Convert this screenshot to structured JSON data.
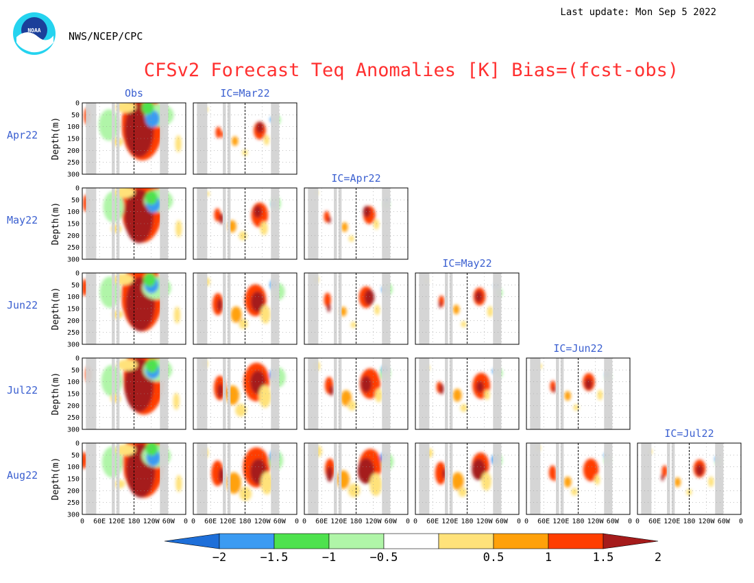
{
  "header": {
    "last_update": "Last update: Mon Sep 5 2022",
    "agency": "NWS/NCEP/CPC",
    "logo_text": "NOAA"
  },
  "chart_data": {
    "type": "heatmap",
    "title": "CFSv2 Forecast Teq Anomalies [K] Bias=(fcst-obs)",
    "ylabel": "Depth(m)",
    "y_ticks": [
      "0",
      "50",
      "100",
      "150",
      "200",
      "250",
      "300"
    ],
    "ylim": [
      300,
      0
    ],
    "x_ticks": [
      "0",
      "60E",
      "120E",
      "180",
      "120W",
      "60W",
      "0"
    ],
    "rows": [
      "Apr22",
      "May22",
      "Jun22",
      "Jul22",
      "Aug22"
    ],
    "obs_label": "Obs",
    "columns": [
      "IC=Mar22",
      "IC=Apr22",
      "IC=May22",
      "IC=Jun22",
      "IC=Jul22"
    ],
    "grid": true,
    "colorbar": {
      "ticks": [
        "−2",
        "−1.5",
        "−1",
        "−0.5",
        "0.5",
        "1",
        "1.5",
        "2"
      ],
      "bins": [
        {
          "range": "< -2",
          "color": "#1e6fd9"
        },
        {
          "range": "-2 to -1.5",
          "color": "#3b9bf2"
        },
        {
          "range": "-1.5 to -1",
          "color": "#4ee24e"
        },
        {
          "range": "-1 to -0.5",
          "color": "#b0f5a8"
        },
        {
          "range": "-0.5 to 0.5",
          "color": "#ffffff"
        },
        {
          "range": "0.5 to 1",
          "color": "#ffe27a"
        },
        {
          "range": "1 to 1.5",
          "color": "#ffa10a"
        },
        {
          "range": "1.5 to 2",
          "color": "#ff3e00"
        },
        {
          "range": "> 2",
          "color": "#a51b1b"
        }
      ]
    },
    "colors": {
      "title": "#ff3030",
      "labels": "#3a5fd0",
      "land_mask": "#d3d3d3",
      "grid": "#999999"
    }
  }
}
